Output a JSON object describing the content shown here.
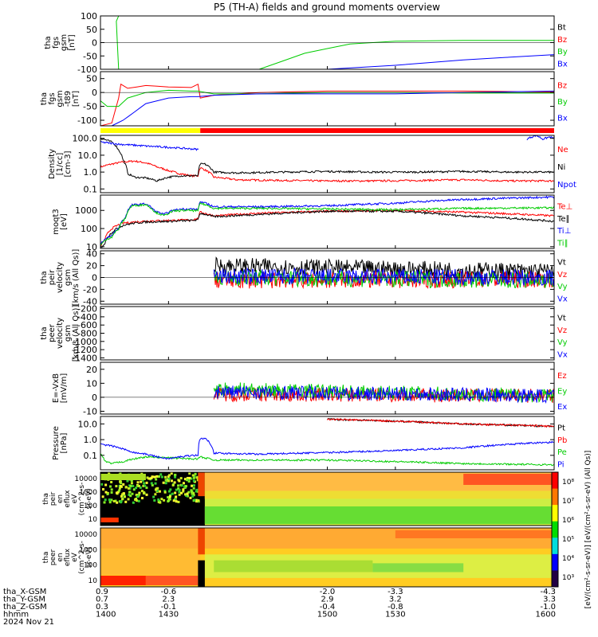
{
  "title": "P5 (TH-A) fields and ground moments overview",
  "colors": {
    "black": "#000000",
    "red": "#ff0000",
    "green": "#00cc00",
    "blue": "#0000ff",
    "yellow": "#ffff00",
    "orange": "#ff7700"
  },
  "chart_data": [
    {
      "type": "line",
      "ylabel": [
        "tha",
        "fgs",
        "gsm",
        "[nT]"
      ],
      "yticks": [
        "100",
        "50",
        "0",
        "-50",
        "-100"
      ],
      "ylim": [
        -100,
        100
      ],
      "series": [
        {
          "name": "Bt",
          "color": "black"
        },
        {
          "name": "Bz",
          "color": "red"
        },
        {
          "name": "By",
          "color": "green",
          "x": [
            1400,
            1408,
            1407,
            1408,
            1422,
            1450,
            1470,
            1490,
            1510,
            1530,
            1560,
            1600
          ],
          "y": [
            100,
            100,
            80,
            -100,
            -100,
            -100,
            -100,
            -40,
            -5,
            5,
            8,
            8
          ]
        },
        {
          "name": "Bx",
          "color": "blue",
          "x": [
            1400,
            1490,
            1500,
            1530,
            1560,
            1600
          ],
          "y": [
            -100,
            -100,
            -100,
            -85,
            -65,
            -45
          ]
        }
      ]
    },
    {
      "type": "line",
      "ylabel": [
        "tha",
        "fgs",
        "gsm",
        "-t89",
        "[nT]"
      ],
      "yticks": [
        "50",
        "0",
        "-50",
        "-100"
      ],
      "ylim": [
        -120,
        75
      ],
      "series": [
        {
          "name": "Bz",
          "color": "red",
          "x": [
            1400,
            1405,
            1408,
            1409,
            1412,
            1420,
            1430,
            1440,
            1443,
            1444,
            1450,
            1470,
            1500,
            1530,
            1560,
            1600
          ],
          "y": [
            -120,
            -110,
            -20,
            30,
            15,
            25,
            20,
            18,
            30,
            -20,
            -10,
            0,
            5,
            5,
            5,
            2
          ]
        },
        {
          "name": "By",
          "color": "green",
          "x": [
            1400,
            1403,
            1408,
            1412,
            1420,
            1430,
            1440,
            1443,
            1450,
            1470,
            1500,
            1530,
            1560,
            1600
          ],
          "y": [
            -30,
            -50,
            -50,
            -20,
            0,
            8,
            5,
            5,
            -5,
            -5,
            0,
            0,
            -2,
            -2
          ]
        },
        {
          "name": "Bx",
          "color": "blue",
          "x": [
            1400,
            1405,
            1410,
            1415,
            1420,
            1430,
            1440,
            1443,
            1450,
            1470,
            1500,
            1530,
            1560,
            1600
          ],
          "y": [
            -120,
            -120,
            -100,
            -70,
            -40,
            -20,
            -15,
            -15,
            -10,
            -5,
            -5,
            -5,
            0,
            5
          ]
        }
      ]
    },
    {
      "type": "bar",
      "description": "",
      "segments": [
        {
          "from": 1400,
          "to": 1444,
          "color": "yellow"
        },
        {
          "from": 1444,
          "to": 1600,
          "color": "red"
        }
      ]
    },
    {
      "type": "line",
      "ylabel": [
        "Density",
        "[1/cc]",
        "[cm-3]"
      ],
      "yticks": [
        "100.0",
        "10.0",
        "1.0",
        "0.1"
      ],
      "log": true,
      "ylim": [
        0.06,
        150
      ],
      "series": [
        {
          "name": "Ne",
          "color": "red",
          "x": [
            1400,
            1405,
            1410,
            1415,
            1420,
            1425,
            1430,
            1435,
            1440,
            1443,
            1444,
            1450,
            1460,
            1480,
            1500,
            1520,
            1540,
            1560,
            1580,
            1600
          ],
          "y": [
            2,
            3,
            4,
            4.5,
            3.5,
            2,
            1.2,
            0.8,
            0.6,
            0.6,
            1.8,
            0.5,
            0.35,
            0.32,
            0.3,
            0.3,
            0.32,
            0.35,
            0.3,
            0.3
          ]
        },
        {
          "name": "Ni",
          "color": "black",
          "x": [
            1400,
            1405,
            1408,
            1410,
            1412,
            1415,
            1420,
            1425,
            1430,
            1435,
            1440,
            1443,
            1444,
            1446,
            1450,
            1460,
            1480,
            1500,
            1520,
            1540,
            1560,
            1580,
            1600
          ],
          "y": [
            100,
            60,
            20,
            5,
            0.8,
            0.5,
            0.45,
            0.3,
            0.5,
            0.6,
            0.6,
            0.6,
            3,
            3,
            1,
            0.9,
            1,
            1.1,
            1,
            1,
            1.1,
            1,
            1
          ]
        },
        {
          "name": "Npot",
          "color": "blue",
          "x": [
            1400,
            1408,
            1420,
            1443,
            1443.1
          ],
          "y": [
            60,
            45,
            35,
            22,
            22
          ]
        },
        {
          "name": "",
          "color": "blue",
          "x": [
            1588,
            1592,
            1595,
            1598,
            1600
          ],
          "y": [
            90,
            150,
            90,
            120,
            100
          ]
        }
      ]
    },
    {
      "type": "line",
      "ylabel": [
        "moqt3",
        "[eV]"
      ],
      "yticks": [
        "1000",
        "100",
        "10"
      ],
      "log": true,
      "ylim": [
        8,
        7000
      ],
      "series": [
        {
          "name": "Te⊥",
          "color": "red",
          "x": [
            1400,
            1402,
            1405,
            1410,
            1415,
            1420,
            1430,
            1440,
            1443,
            1444,
            1450,
            1470,
            1500,
            1530,
            1560,
            1600
          ],
          "y": [
            10,
            25,
            100,
            200,
            230,
            260,
            280,
            300,
            350,
            800,
            500,
            700,
            900,
            1000,
            800,
            500
          ]
        },
        {
          "name": "Te∥",
          "color": "black",
          "x": [
            1400,
            1402,
            1405,
            1410,
            1415,
            1420,
            1430,
            1440,
            1443,
            1444,
            1450,
            1470,
            1500,
            1530,
            1560,
            1600
          ],
          "y": [
            8,
            15,
            60,
            150,
            200,
            230,
            250,
            280,
            300,
            700,
            450,
            600,
            900,
            900,
            500,
            250
          ]
        },
        {
          "name": "Ti⊥",
          "color": "blue",
          "x": [
            1400,
            1405,
            1408,
            1411,
            1414,
            1420,
            1424,
            1428,
            1432,
            1436,
            1440,
            1443,
            1444,
            1450,
            1470,
            1500,
            1530,
            1560,
            1600
          ],
          "y": [
            15,
            40,
            100,
            400,
            2000,
            2300,
            900,
            600,
            1000,
            1200,
            1200,
            1100,
            3000,
            1600,
            1600,
            1800,
            2500,
            4000,
            5500
          ]
        },
        {
          "name": "Ti∥",
          "color": "green",
          "x": [
            1400,
            1405,
            1408,
            1411,
            1414,
            1420,
            1424,
            1428,
            1432,
            1436,
            1440,
            1443,
            1444,
            1450,
            1470,
            1500,
            1530,
            1560,
            1600
          ],
          "y": [
            12,
            35,
            90,
            350,
            1800,
            2100,
            800,
            500,
            900,
            1000,
            1000,
            950,
            2500,
            1300,
            1300,
            1200,
            1100,
            1300,
            1400
          ]
        }
      ]
    },
    {
      "type": "line",
      "ylabel": [
        "tha",
        "peir",
        "velocity",
        "gsm",
        "[km/s (All Qs)]"
      ],
      "yticks": [
        "40",
        "20",
        "0",
        "-20",
        "-40"
      ],
      "ylim": [
        -45,
        45
      ],
      "series": [
        {
          "name": "Vt",
          "color": "black",
          "x": [
            1450,
            1600
          ],
          "y": [
            20,
            10
          ]
        },
        {
          "name": "Vz",
          "color": "red",
          "x": [
            1450,
            1600
          ],
          "y": [
            -5,
            -3
          ]
        },
        {
          "name": "Vy",
          "color": "green",
          "x": [
            1450,
            1600
          ],
          "y": [
            0,
            -5
          ]
        },
        {
          "name": "Vx",
          "color": "blue",
          "x": [
            1450,
            1600
          ],
          "y": [
            2,
            0
          ]
        }
      ]
    },
    {
      "type": "line",
      "ylabel": [
        "tha",
        "peer",
        "velocity",
        "gsm",
        "[km/s (All Qs)]"
      ],
      "yticks": [
        "-200",
        "-400",
        "-600",
        "-800",
        "-1000",
        "-1200",
        "-1400"
      ],
      "ylim": [
        -1450,
        -150
      ],
      "series": [
        {
          "name": "Vt",
          "color": "black"
        },
        {
          "name": "Vz",
          "color": "red"
        },
        {
          "name": "Vy",
          "color": "green"
        },
        {
          "name": "Vx",
          "color": "blue"
        }
      ]
    },
    {
      "type": "line",
      "ylabel": [
        "E=-VxB",
        "[mV/m]"
      ],
      "yticks": [
        "20",
        "10",
        "0",
        "-10"
      ],
      "ylim": [
        -12,
        25
      ],
      "series": [
        {
          "name": "Ez",
          "color": "red",
          "x": [
            1450,
            1600
          ],
          "y": [
            2,
            1
          ]
        },
        {
          "name": "Ey",
          "color": "green",
          "x": [
            1450,
            1600
          ],
          "y": [
            6,
            1
          ]
        },
        {
          "name": "Ex",
          "color": "blue",
          "x": [
            1450,
            1600
          ],
          "y": [
            4,
            1
          ]
        }
      ]
    },
    {
      "type": "line",
      "ylabel": [
        "Pressure",
        "[nPa]"
      ],
      "yticks": [
        "10.0",
        "1.0",
        "0.1"
      ],
      "log": true,
      "ylim": [
        0.012,
        30
      ],
      "series": [
        {
          "name": "Pt",
          "color": "black",
          "x": [
            1500,
            1530,
            1560,
            1600
          ],
          "y": [
            20,
            15,
            10,
            7
          ]
        },
        {
          "name": "Pb",
          "color": "red",
          "x": [
            1500,
            1530,
            1560,
            1600
          ],
          "y": [
            20,
            15,
            10,
            7
          ]
        },
        {
          "name": "Pe",
          "color": "green",
          "x": [
            1400,
            1402,
            1405,
            1410,
            1420,
            1430,
            1440,
            1443,
            1444,
            1450,
            1470,
            1500,
            1530,
            1560,
            1600
          ],
          "y": [
            0.12,
            0.04,
            0.03,
            0.04,
            0.08,
            0.07,
            0.06,
            0.06,
            0.08,
            0.05,
            0.05,
            0.05,
            0.04,
            0.03,
            0.025
          ]
        },
        {
          "name": "Pi",
          "color": "blue",
          "x": [
            1400,
            1405,
            1410,
            1415,
            1420,
            1425,
            1430,
            1435,
            1440,
            1443,
            1444,
            1446,
            1450,
            1470,
            1500,
            1530,
            1560,
            1600
          ],
          "y": [
            0.5,
            0.4,
            0.25,
            0.15,
            0.12,
            0.08,
            0.06,
            0.08,
            0.1,
            0.1,
            1.2,
            1.2,
            0.14,
            0.12,
            0.15,
            0.2,
            0.3,
            0.7
          ]
        }
      ]
    },
    {
      "type": "heatmap",
      "ylabel": [
        "tha",
        "peir",
        "en",
        "eflux",
        "eV",
        "(cm^2-s-",
        "sr-eV)"
      ],
      "yticks": [
        "10000",
        "1000",
        "100",
        "10"
      ]
    },
    {
      "type": "heatmap",
      "ylabel": [
        "tha",
        "peer",
        "en",
        "eflux",
        "eV",
        "(cm^2-s-",
        "sr-eV)"
      ],
      "yticks": [
        "10000",
        "1000",
        "100",
        "10"
      ]
    }
  ],
  "colorbar": {
    "ticks": [
      "10⁸",
      "10⁷",
      "10⁶",
      "10⁵",
      "10⁴",
      "10³"
    ],
    "label": "[eV/(cm²-s-sr-eV)] [eV/(cm²-s-sr-eV) (All Qs)]"
  },
  "xaxis": {
    "rows": [
      {
        "label": "tha_X-GSM",
        "values": [
          "0.9",
          "-0.6",
          "-2.0",
          "-3.3",
          "-4.3"
        ]
      },
      {
        "label": "tha_Y-GSM",
        "values": [
          "0.7",
          "2.3",
          "2.9",
          "3.2",
          "3.3"
        ]
      },
      {
        "label": "tha_Z-GSM",
        "values": [
          "0.3",
          "-0.1",
          "-0.4",
          "-0.8",
          "-1.0"
        ]
      },
      {
        "label": "hhmm",
        "values": [
          "1400",
          "1430",
          "1500",
          "1530",
          "1600"
        ]
      }
    ],
    "date": "2024 Nov 21"
  }
}
